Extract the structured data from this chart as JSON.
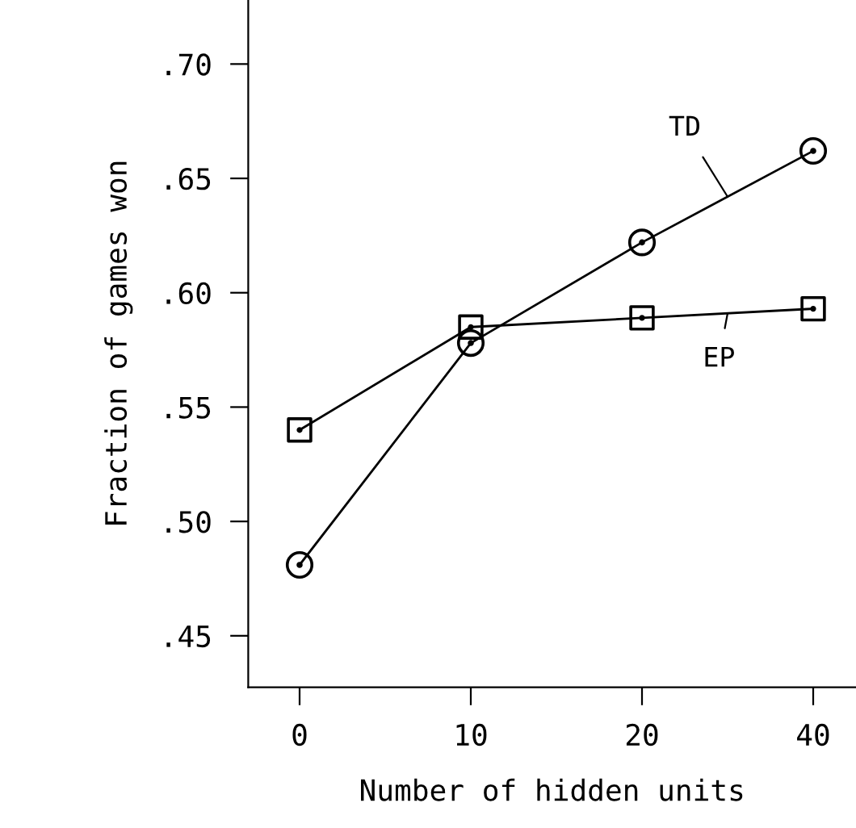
{
  "chart_data": {
    "type": "line",
    "xlabel": "Number of hidden units",
    "ylabel": "Fraction of games won",
    "categories": [
      "0",
      "10",
      "20",
      "40"
    ],
    "series": [
      {
        "name": "TD",
        "color": "#000000",
        "marker": "circle",
        "values": [
          0.481,
          0.578,
          0.622,
          0.662
        ]
      },
      {
        "name": "EP",
        "color": "#000000",
        "marker": "square",
        "values": [
          0.54,
          0.585,
          0.589,
          0.593
        ]
      }
    ],
    "ylim": [
      0.4275,
      0.728
    ],
    "yticks": [
      {
        "value": 0.45,
        "label": ".45"
      },
      {
        "value": 0.5,
        "label": ".50"
      },
      {
        "value": 0.55,
        "label": ".55"
      },
      {
        "value": 0.6,
        "label": ".60"
      },
      {
        "value": 0.65,
        "label": ".65"
      },
      {
        "value": 0.7,
        "label": ".70"
      }
    ],
    "grid": false,
    "line_style": "solid"
  }
}
